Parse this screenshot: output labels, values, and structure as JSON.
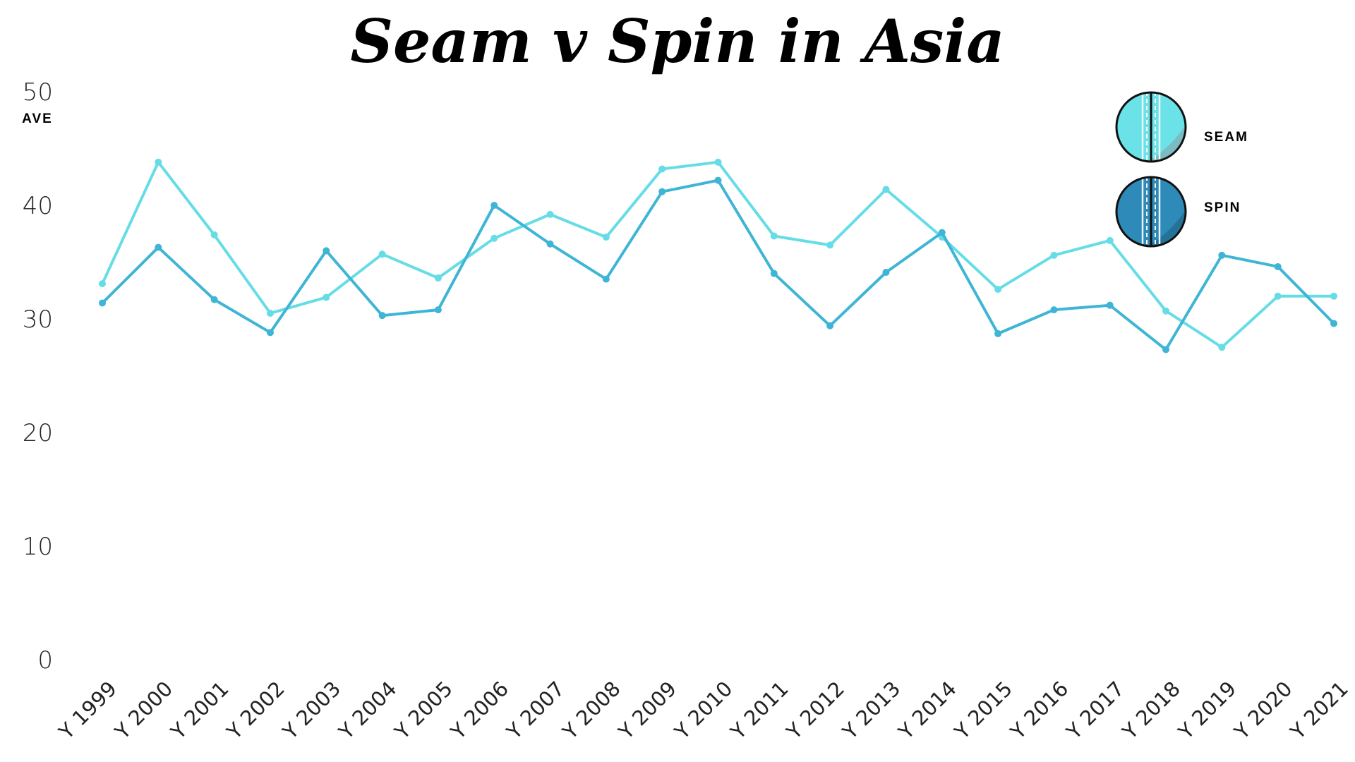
{
  "chart_data": {
    "type": "line",
    "title": "Seam v Spin in Asia",
    "xlabel": "",
    "ylabel": "AVE",
    "ylim": [
      0,
      50
    ],
    "yticks": [
      "0",
      "10",
      "20",
      "30",
      "40",
      "50"
    ],
    "grid": false,
    "legend_position": "top-right",
    "categories": [
      "Y 1999",
      "Y 2000",
      "Y 2001",
      "Y 2002",
      "Y 2003",
      "Y 2004",
      "Y 2005",
      "Y 2006",
      "Y 2007",
      "Y 2008",
      "Y 2009",
      "Y 2010",
      "Y 2011",
      "Y 2012",
      "Y 2013",
      "Y 2014",
      "Y 2015",
      "Y 2016",
      "Y 2017",
      "Y 2018",
      "Y 2019",
      "Y 2020",
      "Y 2021"
    ],
    "series": [
      {
        "name": "SEAM",
        "color": "#66dde6",
        "values": [
          33.1,
          43.8,
          37.4,
          30.5,
          31.9,
          35.7,
          33.6,
          37.1,
          39.2,
          37.2,
          43.2,
          43.8,
          37.3,
          36.5,
          41.4,
          37.2,
          32.6,
          35.6,
          36.9,
          30.7,
          27.5,
          32.0,
          32.0
        ]
      },
      {
        "name": "SPIN",
        "color": "#3fb5d6",
        "values": [
          31.4,
          36.3,
          31.7,
          28.8,
          36.0,
          30.3,
          30.8,
          40.0,
          36.6,
          33.5,
          41.2,
          42.2,
          34.0,
          29.4,
          34.1,
          37.6,
          28.7,
          30.8,
          31.2,
          27.3,
          35.6,
          34.6,
          29.6
        ]
      }
    ]
  },
  "legend": {
    "icons": [
      "cricket-ball-icon",
      "cricket-ball-icon"
    ],
    "icon_colors": {
      "seam": "#6ae2e8",
      "spin": "#2e8ab8"
    }
  }
}
